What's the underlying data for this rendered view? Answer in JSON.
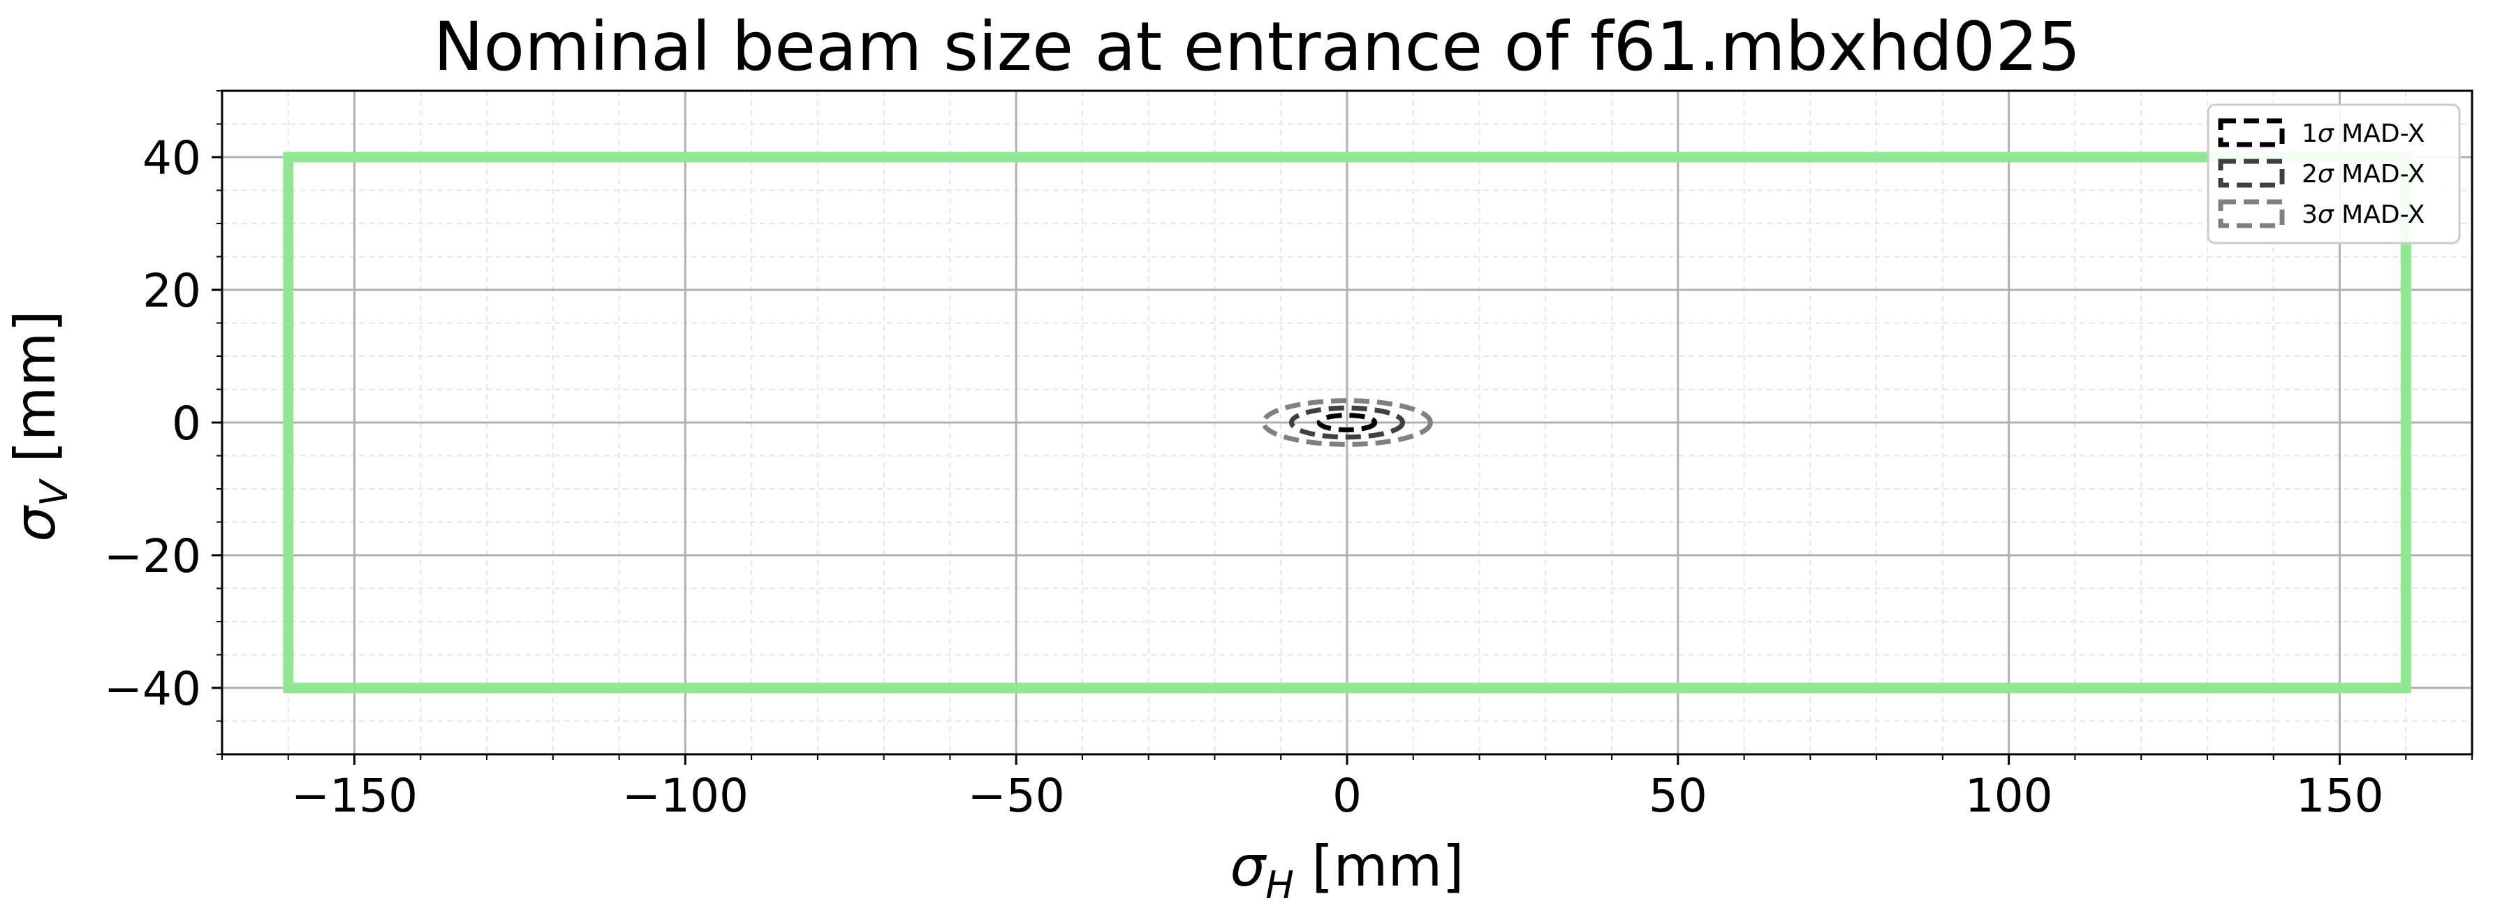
{
  "chart_data": {
    "type": "line",
    "title": "Nominal beam size at entrance of f61.mbxhd025",
    "xlabel": {
      "main": "σ",
      "sub": "H",
      "unit": " [mm]"
    },
    "ylabel": {
      "main": "σ",
      "sub": "V",
      "unit": " [mm]"
    },
    "xlim": [
      -170,
      170
    ],
    "ylim": [
      -50,
      50
    ],
    "xticks": [
      -150,
      -100,
      -50,
      0,
      50,
      100,
      150
    ],
    "yticks": [
      -40,
      -20,
      0,
      20,
      40
    ],
    "xtick_labels": [
      "−150",
      "−100",
      "−50",
      "0",
      "50",
      "100",
      "150"
    ],
    "ytick_labels": [
      "−40",
      "−20",
      "0",
      "20",
      "40"
    ],
    "grid": {
      "major": true,
      "minor": true
    },
    "legend_position": "top-right",
    "aperture": {
      "shape": "rectangle",
      "half_width": 160,
      "half_height": 40,
      "color": "#90e890"
    },
    "series": [
      {
        "name": "1σ MAD-X",
        "legend_prefix": "1",
        "legend_symbol": "σ",
        "legend_suffix": " MAD-X",
        "shape": "ellipse",
        "center": [
          0,
          0
        ],
        "semi_x": 4.2,
        "semi_y": 1.1,
        "color": "#000000"
      },
      {
        "name": "2σ MAD-X",
        "legend_prefix": "2",
        "legend_symbol": "σ",
        "legend_suffix": " MAD-X",
        "shape": "ellipse",
        "center": [
          0,
          0
        ],
        "semi_x": 8.4,
        "semi_y": 2.2,
        "color": "#404040"
      },
      {
        "name": "3σ MAD-X",
        "legend_prefix": "3",
        "legend_symbol": "σ",
        "legend_suffix": " MAD-X",
        "shape": "ellipse",
        "center": [
          0,
          0
        ],
        "semi_x": 12.6,
        "semi_y": 3.3,
        "color": "#808080"
      }
    ]
  }
}
